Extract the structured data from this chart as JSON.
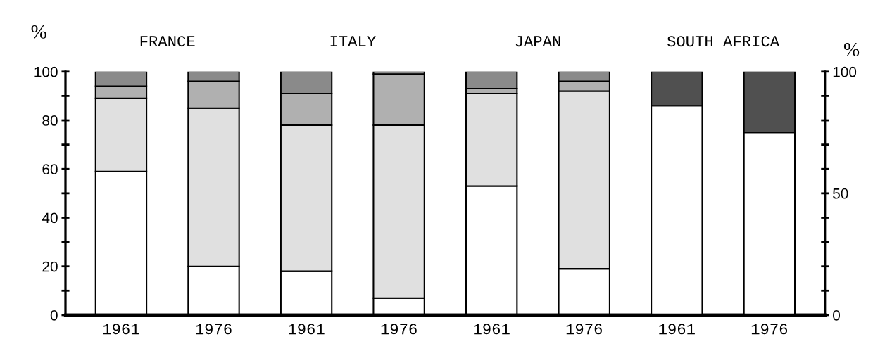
{
  "chart_data": {
    "type": "bar",
    "stacked": true,
    "categories": [
      "1961",
      "1976",
      "1961",
      "1976",
      "1961",
      "1976",
      "1961",
      "1976"
    ],
    "series": [
      {
        "color": "#ffffff",
        "values": [
          59,
          20,
          18,
          7,
          53,
          19,
          null,
          null
        ]
      },
      {
        "color": "#e0e0e0",
        "values": [
          30,
          65,
          60,
          71,
          38,
          73,
          null,
          null
        ]
      },
      {
        "color": "#b0b0b0",
        "values": [
          5,
          11,
          13,
          21,
          2,
          4,
          null,
          null
        ]
      },
      {
        "color": "#8a8a8a",
        "values": [
          6,
          4,
          9,
          1,
          7,
          4,
          null,
          null
        ]
      },
      {
        "color": "#ffffff",
        "axis": "y2",
        "values": [
          null,
          null,
          null,
          null,
          null,
          null,
          86,
          75
        ]
      },
      {
        "color": "#505050",
        "axis": "y2",
        "values": [
          null,
          null,
          null,
          null,
          null,
          null,
          14,
          25
        ]
      }
    ],
    "ylabel": "%",
    "y2label": "%",
    "ylim": [
      0,
      100
    ],
    "yticks": [
      0,
      {
        "value": 10,
        "label": null
      },
      20,
      {
        "value": 30,
        "label": null
      },
      40,
      {
        "value": 50,
        "label": null
      },
      60,
      {
        "value": 70,
        "label": null
      },
      80,
      {
        "value": 90,
        "label": null
      },
      100
    ],
    "y2lim": [
      0,
      100
    ],
    "y2ticks": [
      0,
      {
        "value": 10,
        "label": null
      },
      {
        "value": 20,
        "label": null
      },
      {
        "value": 30,
        "label": null
      },
      {
        "value": 40,
        "label": null
      },
      50,
      {
        "value": 60,
        "label": null
      },
      {
        "value": 70,
        "label": null
      },
      {
        "value": 80,
        "label": null
      },
      {
        "value": 90,
        "label": null
      },
      100
    ],
    "annotations": [
      "FRANCE",
      "ITALY",
      "JAPAN",
      "SOUTH AFRICA"
    ],
    "grid": false,
    "legend": false
  }
}
